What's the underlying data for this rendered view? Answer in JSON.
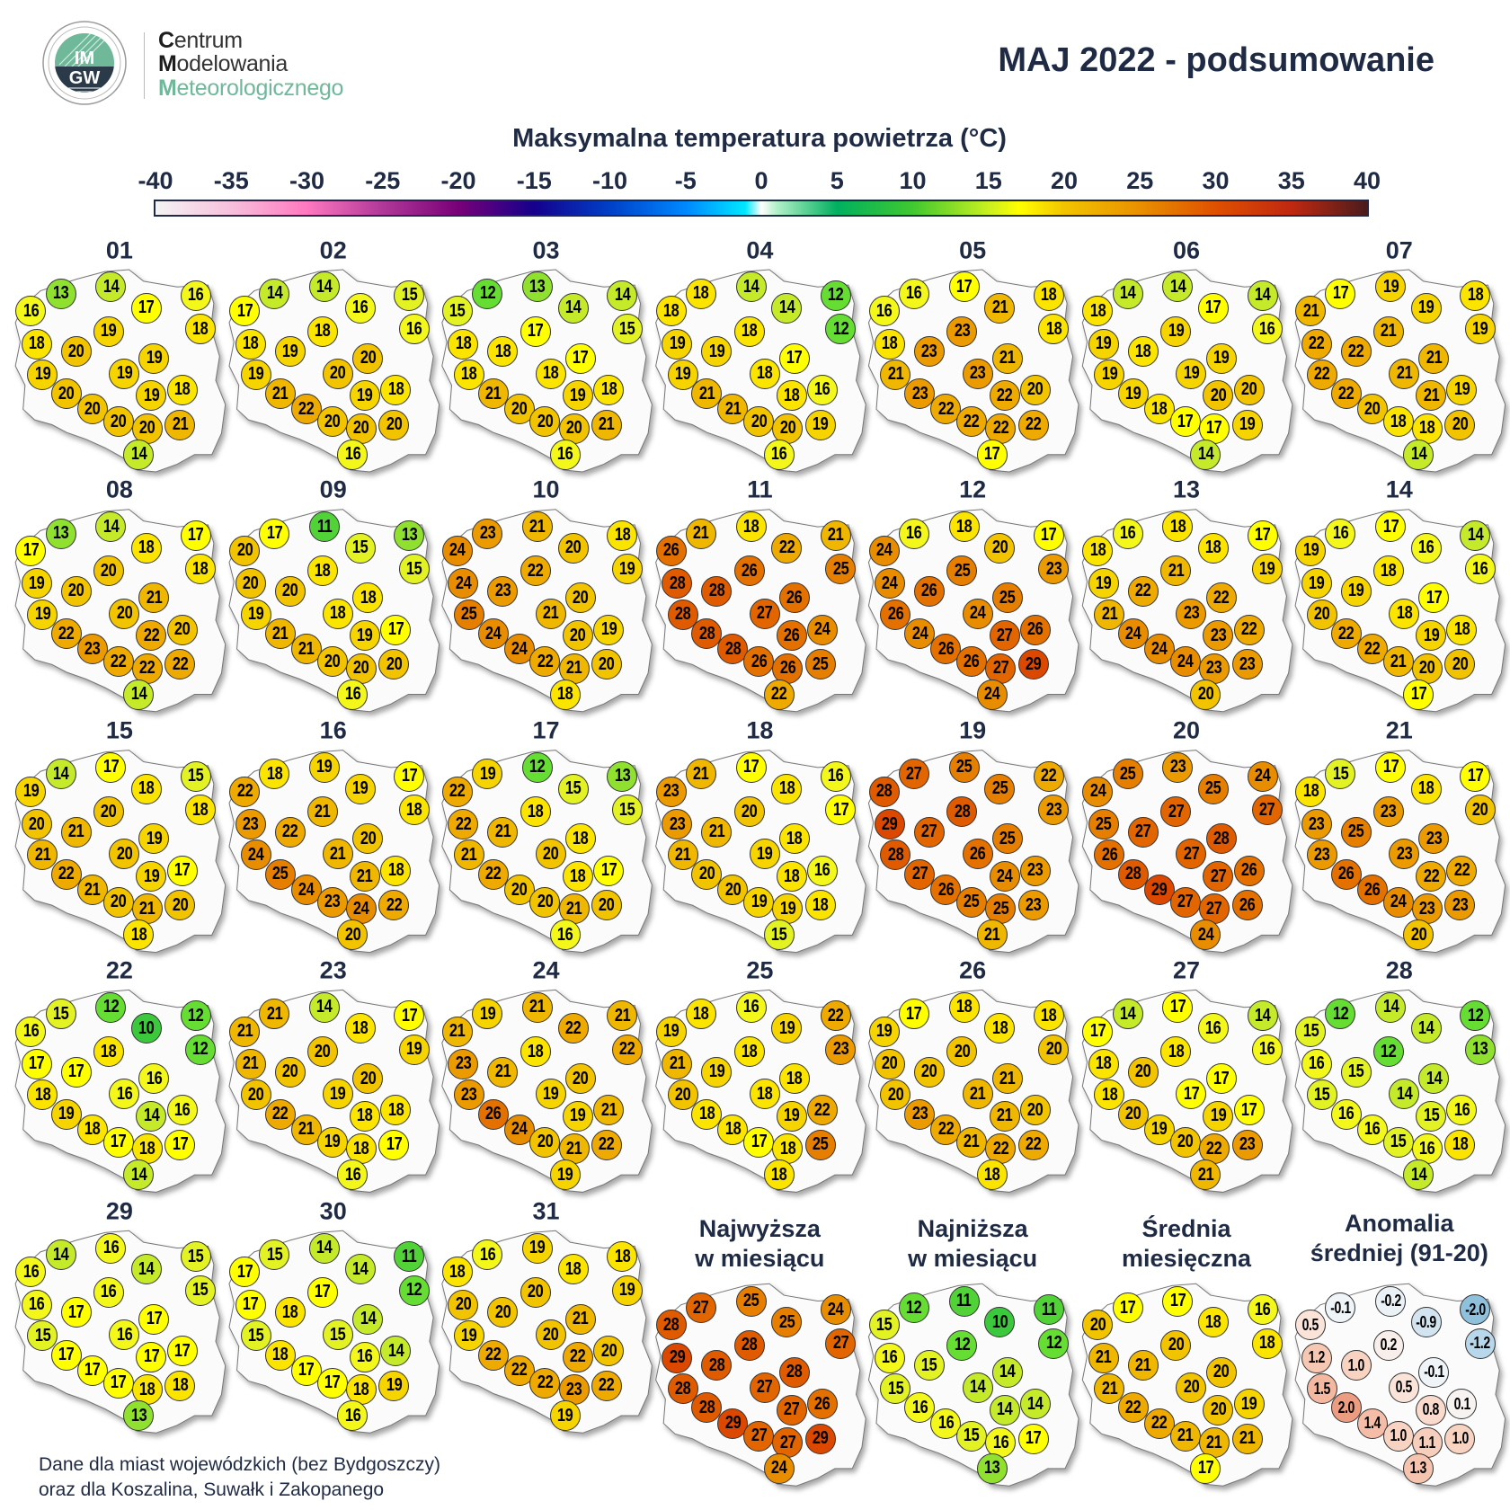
{
  "header": {
    "logo_text": "IMGW",
    "org_lines": [
      {
        "initial": "C",
        "rest": "entrum"
      },
      {
        "initial": "M",
        "rest": "odelowania"
      },
      {
        "initial": "M",
        "rest": "eteorologicznego"
      }
    ],
    "title": "MAJ 2022 - podsumowanie"
  },
  "chart_data": {
    "type": "map",
    "title": "Maksymalna temperatura powietrza (°C)",
    "colorbar": {
      "ticks": [
        "-40",
        "-35",
        "-30",
        "-25",
        "-20",
        "-15",
        "-10",
        "-5",
        "0",
        "5",
        "10",
        "15",
        "20",
        "25",
        "30",
        "35",
        "40"
      ],
      "range": [
        -40,
        40
      ]
    },
    "color_scale": [
      [
        10,
        "#3cc83c"
      ],
      [
        12,
        "#66dd33"
      ],
      [
        13,
        "#90e030"
      ],
      [
        14,
        "#c4ea2a"
      ],
      [
        15,
        "#e2f222"
      ],
      [
        16,
        "#f4f81a"
      ],
      [
        17,
        "#ffff00"
      ],
      [
        18,
        "#fae400"
      ],
      [
        19,
        "#f6d400"
      ],
      [
        20,
        "#f2c400"
      ],
      [
        22,
        "#eeaa00"
      ],
      [
        24,
        "#e88c00"
      ],
      [
        26,
        "#e47000"
      ],
      [
        28,
        "#e05a00"
      ],
      [
        29,
        "#dc4800"
      ]
    ],
    "anomaly_color_scale": [
      [
        -2.0,
        "#8fc0dc"
      ],
      [
        -1.2,
        "#b9d7ea"
      ],
      [
        -0.9,
        "#d2e4f0"
      ],
      [
        -0.1,
        "#eef4f8"
      ],
      [
        0.1,
        "#f7f3f1"
      ],
      [
        0.5,
        "#fae4da"
      ],
      [
        1.0,
        "#f8d3c2"
      ],
      [
        1.5,
        "#f4b8a0"
      ],
      [
        2.0,
        "#ec9c80"
      ]
    ],
    "days": [
      {
        "label": "01",
        "values": [
          13,
          14,
          16,
          16,
          17,
          18,
          19,
          18,
          20,
          19,
          19,
          19,
          18,
          19,
          20,
          20,
          20,
          20,
          21,
          14
        ]
      },
      {
        "label": "02",
        "values": [
          14,
          14,
          15,
          17,
          16,
          16,
          18,
          18,
          19,
          20,
          20,
          19,
          18,
          19,
          21,
          22,
          20,
          20,
          20,
          16
        ]
      },
      {
        "label": "03",
        "values": [
          12,
          13,
          14,
          15,
          14,
          15,
          17,
          18,
          18,
          17,
          18,
          18,
          18,
          19,
          21,
          20,
          20,
          20,
          21,
          16
        ]
      },
      {
        "label": "04",
        "values": [
          18,
          14,
          12,
          18,
          14,
          12,
          18,
          19,
          19,
          17,
          18,
          19,
          16,
          18,
          21,
          21,
          20,
          20,
          19,
          16
        ]
      },
      {
        "label": "05",
        "values": [
          16,
          17,
          18,
          16,
          21,
          18,
          23,
          18,
          23,
          21,
          23,
          21,
          20,
          22,
          23,
          22,
          22,
          22,
          22,
          17
        ]
      },
      {
        "label": "06",
        "values": [
          14,
          14,
          14,
          18,
          17,
          16,
          19,
          19,
          18,
          19,
          19,
          19,
          20,
          20,
          19,
          18,
          17,
          17,
          19,
          14
        ]
      },
      {
        "label": "07",
        "values": [
          17,
          19,
          18,
          21,
          19,
          19,
          21,
          22,
          22,
          21,
          21,
          22,
          19,
          21,
          22,
          20,
          18,
          18,
          20,
          14
        ]
      },
      {
        "label": "08",
        "values": [
          13,
          14,
          17,
          17,
          18,
          18,
          20,
          19,
          20,
          21,
          20,
          19,
          20,
          22,
          22,
          23,
          22,
          22,
          22,
          14
        ]
      },
      {
        "label": "09",
        "values": [
          17,
          11,
          13,
          20,
          15,
          15,
          18,
          20,
          20,
          18,
          18,
          19,
          17,
          19,
          21,
          21,
          20,
          20,
          20,
          16
        ]
      },
      {
        "label": "10",
        "values": [
          23,
          21,
          18,
          24,
          20,
          19,
          22,
          24,
          23,
          20,
          21,
          25,
          19,
          20,
          24,
          24,
          22,
          21,
          20,
          18
        ]
      },
      {
        "label": "11",
        "values": [
          21,
          18,
          21,
          26,
          22,
          25,
          26,
          28,
          28,
          26,
          27,
          28,
          24,
          26,
          28,
          28,
          26,
          26,
          25,
          22
        ]
      },
      {
        "label": "12",
        "values": [
          16,
          18,
          17,
          24,
          20,
          23,
          25,
          24,
          26,
          25,
          24,
          26,
          26,
          27,
          24,
          26,
          26,
          27,
          29,
          24
        ]
      },
      {
        "label": "13",
        "values": [
          16,
          18,
          17,
          18,
          18,
          19,
          21,
          19,
          22,
          22,
          23,
          21,
          22,
          23,
          24,
          24,
          24,
          23,
          23,
          20
        ]
      },
      {
        "label": "14",
        "values": [
          16,
          17,
          14,
          19,
          16,
          16,
          18,
          19,
          19,
          17,
          18,
          20,
          18,
          19,
          22,
          22,
          21,
          20,
          20,
          17
        ]
      },
      {
        "label": "15",
        "values": [
          14,
          17,
          15,
          19,
          18,
          18,
          20,
          20,
          21,
          19,
          20,
          21,
          17,
          19,
          22,
          21,
          20,
          21,
          20,
          18
        ]
      },
      {
        "label": "16",
        "values": [
          18,
          19,
          17,
          22,
          19,
          18,
          21,
          23,
          22,
          20,
          21,
          24,
          18,
          21,
          25,
          24,
          23,
          24,
          22,
          20
        ]
      },
      {
        "label": "17",
        "values": [
          19,
          12,
          13,
          22,
          15,
          15,
          18,
          22,
          21,
          18,
          20,
          21,
          17,
          18,
          22,
          20,
          20,
          21,
          20,
          16
        ]
      },
      {
        "label": "18",
        "values": [
          21,
          17,
          16,
          23,
          18,
          17,
          20,
          23,
          21,
          18,
          19,
          21,
          16,
          18,
          20,
          20,
          19,
          19,
          18,
          15
        ]
      },
      {
        "label": "19",
        "values": [
          27,
          25,
          22,
          28,
          25,
          23,
          28,
          29,
          27,
          25,
          26,
          28,
          23,
          24,
          27,
          26,
          25,
          25,
          23,
          21
        ]
      },
      {
        "label": "20",
        "values": [
          25,
          23,
          24,
          24,
          25,
          27,
          27,
          25,
          27,
          28,
          27,
          26,
          26,
          27,
          28,
          29,
          27,
          27,
          26,
          24
        ]
      },
      {
        "label": "21",
        "values": [
          15,
          17,
          17,
          18,
          18,
          20,
          23,
          23,
          25,
          23,
          23,
          23,
          22,
          22,
          26,
          26,
          24,
          23,
          23,
          20
        ]
      },
      {
        "label": "22",
        "values": [
          15,
          12,
          12,
          16,
          10,
          12,
          18,
          17,
          17,
          16,
          16,
          18,
          16,
          14,
          19,
          18,
          17,
          18,
          17,
          14
        ]
      },
      {
        "label": "23",
        "values": [
          21,
          14,
          17,
          21,
          18,
          19,
          20,
          21,
          20,
          20,
          19,
          20,
          18,
          18,
          22,
          21,
          19,
          18,
          17,
          16
        ]
      },
      {
        "label": "24",
        "values": [
          19,
          21,
          21,
          21,
          22,
          22,
          18,
          23,
          21,
          20,
          19,
          23,
          21,
          19,
          26,
          24,
          20,
          21,
          22,
          19
        ]
      },
      {
        "label": "25",
        "values": [
          18,
          16,
          22,
          19,
          19,
          23,
          18,
          21,
          19,
          18,
          18,
          20,
          22,
          19,
          18,
          18,
          17,
          18,
          25,
          18
        ]
      },
      {
        "label": "26",
        "values": [
          17,
          18,
          18,
          19,
          18,
          20,
          20,
          20,
          20,
          21,
          21,
          20,
          20,
          21,
          23,
          22,
          21,
          22,
          22,
          18
        ]
      },
      {
        "label": "27",
        "values": [
          14,
          17,
          14,
          17,
          16,
          16,
          18,
          18,
          20,
          17,
          17,
          18,
          17,
          19,
          20,
          19,
          20,
          22,
          23,
          21
        ]
      },
      {
        "label": "28",
        "values": [
          12,
          14,
          12,
          15,
          14,
          13,
          12,
          16,
          15,
          14,
          14,
          15,
          16,
          15,
          16,
          16,
          15,
          16,
          18,
          14
        ]
      },
      {
        "label": "29",
        "values": [
          14,
          16,
          15,
          16,
          14,
          15,
          16,
          16,
          17,
          17,
          16,
          15,
          17,
          17,
          17,
          17,
          17,
          18,
          18,
          13
        ]
      },
      {
        "label": "30",
        "values": [
          15,
          14,
          11,
          17,
          14,
          12,
          17,
          17,
          18,
          14,
          15,
          15,
          14,
          16,
          18,
          17,
          17,
          18,
          19,
          16
        ]
      },
      {
        "label": "31",
        "values": [
          16,
          19,
          18,
          18,
          18,
          19,
          20,
          20,
          20,
          21,
          20,
          19,
          20,
          22,
          22,
          22,
          22,
          23,
          22,
          19
        ]
      }
    ],
    "summaries": [
      {
        "title_lines": [
          "Najwyższa",
          "w miesiącu"
        ],
        "kind": "temperature",
        "values": [
          27,
          25,
          24,
          28,
          25,
          27,
          28,
          29,
          28,
          28,
          27,
          28,
          26,
          27,
          28,
          29,
          27,
          27,
          29,
          24
        ]
      },
      {
        "title_lines": [
          "Najniższa",
          "w miesiącu"
        ],
        "kind": "temperature",
        "values": [
          12,
          11,
          11,
          15,
          10,
          12,
          12,
          16,
          15,
          14,
          14,
          15,
          14,
          14,
          16,
          16,
          15,
          16,
          17,
          13
        ]
      },
      {
        "title_lines": [
          "Średnia",
          "miesięczna"
        ],
        "kind": "temperature",
        "values": [
          17,
          17,
          16,
          20,
          18,
          18,
          20,
          21,
          21,
          20,
          20,
          21,
          19,
          20,
          22,
          22,
          21,
          21,
          21,
          17
        ]
      },
      {
        "title_lines": [
          "Anomalia",
          "średniej (91-20)"
        ],
        "kind": "anomaly",
        "values": [
          "-0.1",
          "-0.2",
          "-2.0",
          "0.5",
          "-0.9",
          "-1.2",
          "0.2",
          "1.2",
          "1.0",
          "-0.1",
          "0.5",
          "1.5",
          "0.1",
          "0.8",
          "2.0",
          "1.4",
          "1.0",
          "1.1",
          "1.0",
          "1.3"
        ]
      }
    ]
  },
  "footnote": [
    "Dane dla miast wojewódzkich (bez Bydgoszczy)",
    "oraz dla Koszalina, Suwałk i Zakopanego"
  ]
}
